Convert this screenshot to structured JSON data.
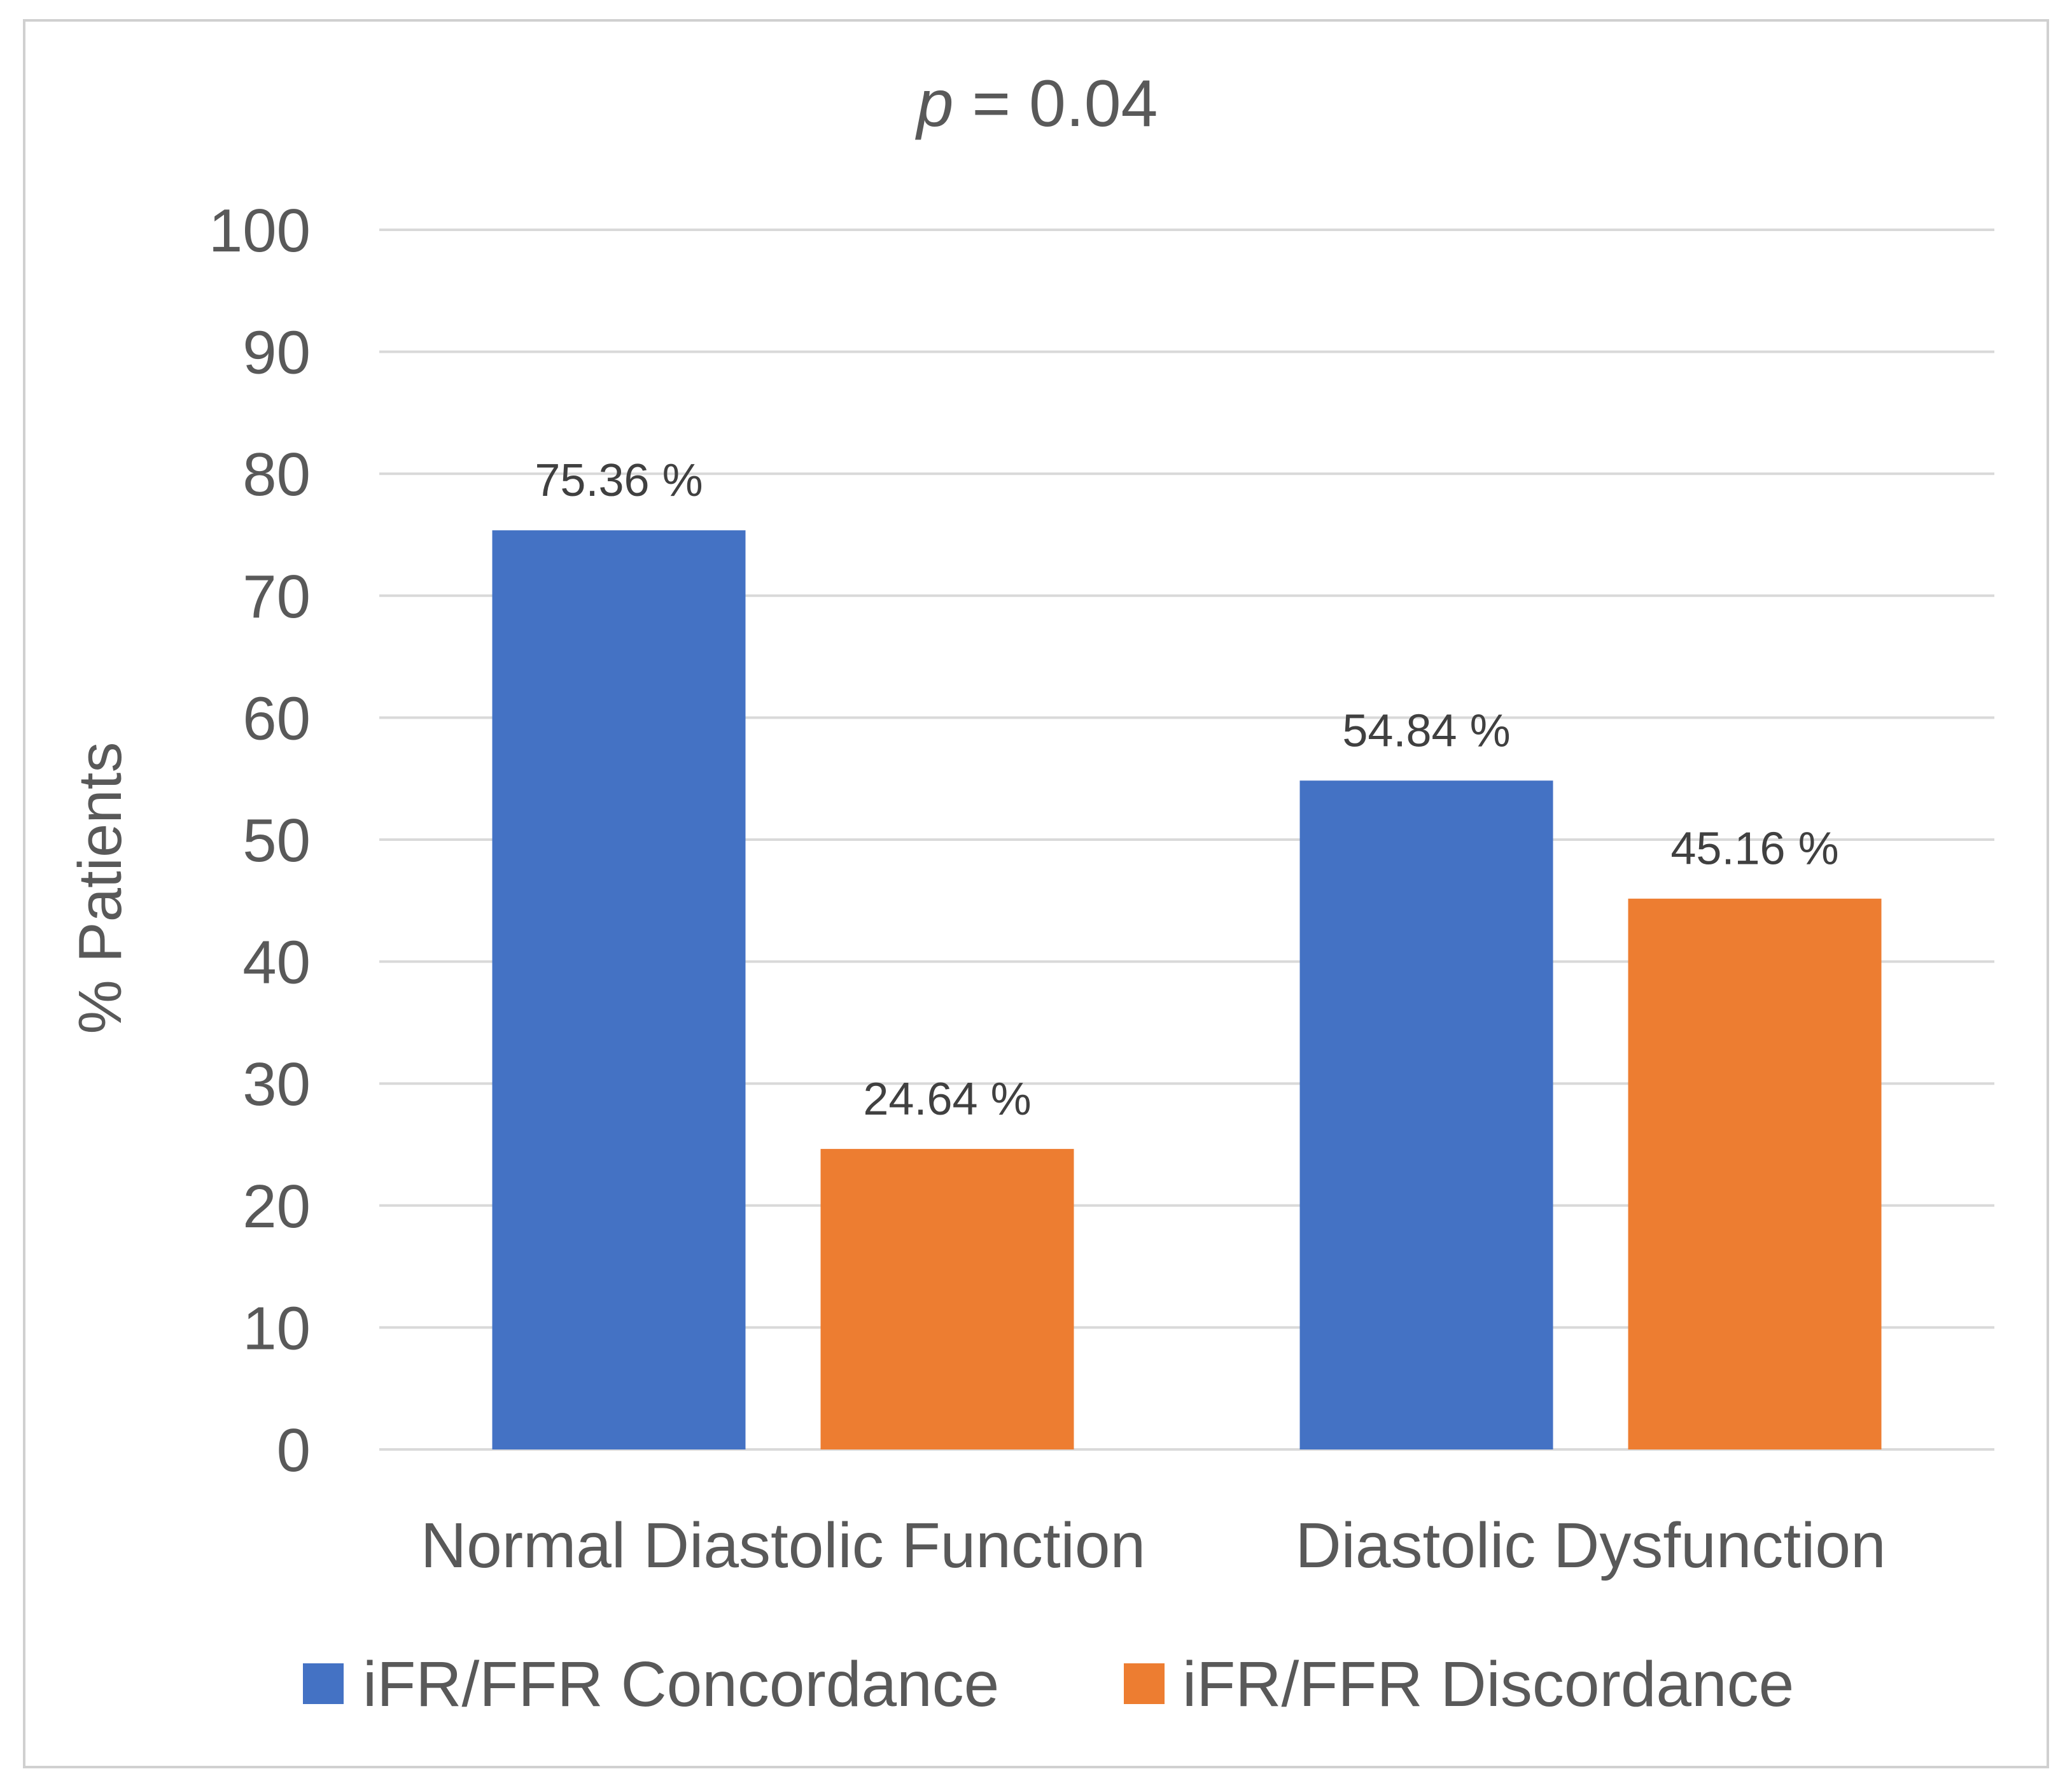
{
  "chart_data": {
    "type": "bar",
    "title_var": "p",
    "title_rest": " = 0.04",
    "xlabel": "",
    "ylabel": "% Patients",
    "ylim": [
      0,
      100
    ],
    "yticks": [
      0,
      10,
      20,
      30,
      40,
      50,
      60,
      70,
      80,
      90,
      100
    ],
    "grid": true,
    "legend_position": "bottom",
    "categories": [
      "Normal Diastolic Function",
      "Diastolic Dysfunction"
    ],
    "series": [
      {
        "name": "iFR/FFR Concordance",
        "color": "#4472C4",
        "values": [
          75.36,
          54.84
        ],
        "labels": [
          "75.36 %",
          "54.84 %"
        ]
      },
      {
        "name": "iFR/FFR Discordance",
        "color": "#ED7D31",
        "values": [
          24.64,
          45.16
        ],
        "labels": [
          "24.64 %",
          "45.16 %"
        ]
      }
    ]
  }
}
